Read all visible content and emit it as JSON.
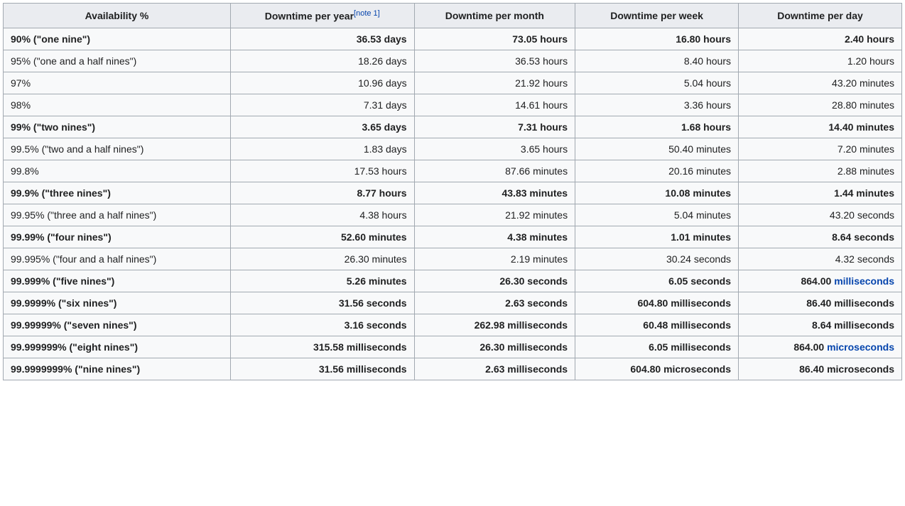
{
  "link_color": "#0645ad",
  "header_bg": "#eaecf0",
  "cell_bg": "#f8f9fa",
  "border_color": "#a2a9b1",
  "columns": [
    "Availability %",
    "Downtime per year",
    "Downtime per month",
    "Downtime per week",
    "Downtime per day"
  ],
  "year_note_label": "[note 1]",
  "rows": [
    {
      "bold": true,
      "availability": "90% (\"one nine\")",
      "year": "36.53 days",
      "month": "73.05 hours",
      "week": "16.80 hours",
      "day": "2.40 hours"
    },
    {
      "bold": false,
      "availability": "95% (\"one and a half nines\")",
      "year": "18.26 days",
      "month": "36.53 hours",
      "week": "8.40 hours",
      "day": "1.20 hours"
    },
    {
      "bold": false,
      "availability": "97%",
      "year": "10.96 days",
      "month": "21.92 hours",
      "week": "5.04 hours",
      "day": "43.20 minutes"
    },
    {
      "bold": false,
      "availability": "98%",
      "year": "7.31 days",
      "month": "14.61 hours",
      "week": "3.36 hours",
      "day": "28.80 minutes"
    },
    {
      "bold": true,
      "availability": "99% (\"two nines\")",
      "year": "3.65 days",
      "month": "7.31 hours",
      "week": "1.68 hours",
      "day": "14.40 minutes"
    },
    {
      "bold": false,
      "availability": "99.5% (\"two and a half nines\")",
      "year": "1.83 days",
      "month": "3.65 hours",
      "week": "50.40 minutes",
      "day": "7.20 minutes"
    },
    {
      "bold": false,
      "availability": "99.8%",
      "year": "17.53 hours",
      "month": "87.66 minutes",
      "week": "20.16 minutes",
      "day": "2.88 minutes"
    },
    {
      "bold": true,
      "availability": "99.9% (\"three nines\")",
      "year": "8.77 hours",
      "month": "43.83 minutes",
      "week": "10.08 minutes",
      "day": "1.44 minutes"
    },
    {
      "bold": false,
      "availability": "99.95% (\"three and a half nines\")",
      "year": "4.38 hours",
      "month": "21.92 minutes",
      "week": "5.04 minutes",
      "day": "43.20 seconds"
    },
    {
      "bold": true,
      "availability": "99.99% (\"four nines\")",
      "year": "52.60 minutes",
      "month": "4.38 minutes",
      "week": "1.01 minutes",
      "day": "8.64 seconds"
    },
    {
      "bold": false,
      "availability": "99.995% (\"four and a half nines\")",
      "year": "26.30 minutes",
      "month": "2.19 minutes",
      "week": "30.24 seconds",
      "day": "4.32 seconds"
    },
    {
      "bold": true,
      "availability": "99.999% (\"five nines\")",
      "year": "5.26 minutes",
      "month": "26.30 seconds",
      "week": "6.05 seconds",
      "day_prefix": "864.00 ",
      "day_link": "milliseconds"
    },
    {
      "bold": true,
      "availability": "99.9999% (\"six nines\")",
      "year": "31.56 seconds",
      "month": "2.63 seconds",
      "week": "604.80 milliseconds",
      "day": "86.40 milliseconds"
    },
    {
      "bold": true,
      "availability": "99.99999% (\"seven nines\")",
      "year": "3.16 seconds",
      "month": "262.98 milliseconds",
      "week": "60.48 milliseconds",
      "day": "8.64 milliseconds"
    },
    {
      "bold": true,
      "availability": "99.999999% (\"eight nines\")",
      "year": "315.58 milliseconds",
      "month": "26.30 milliseconds",
      "week": "6.05 milliseconds",
      "day_prefix": "864.00 ",
      "day_link": "microseconds"
    },
    {
      "bold": true,
      "availability": "99.9999999% (\"nine nines\")",
      "year": "31.56 milliseconds",
      "month": "2.63 milliseconds",
      "week": "604.80 microseconds",
      "day": "86.40 microseconds"
    }
  ]
}
